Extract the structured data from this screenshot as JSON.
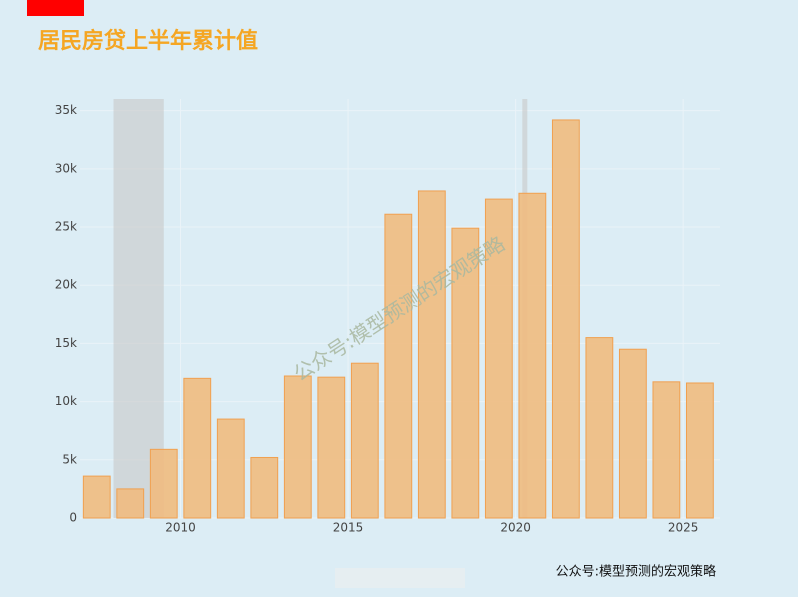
{
  "chart_data": {
    "type": "bar",
    "title": "居民房贷上半年累计值",
    "watermark": "公众号:模型预测的宏观策略",
    "footer": "公众号:模型预测的宏观策略",
    "x": [
      2007.5,
      2008.5,
      2009.5,
      2010.5,
      2011.5,
      2012.5,
      2013.5,
      2014.5,
      2015.5,
      2016.5,
      2017.5,
      2018.5,
      2019.5,
      2020.5,
      2021.5,
      2022.5,
      2023.5,
      2024.5,
      2025.5
    ],
    "values": [
      3600,
      2500,
      5900,
      12000,
      8500,
      5200,
      12200,
      12100,
      13300,
      26100,
      28100,
      24900,
      27400,
      27900,
      34200,
      15500,
      14500,
      11700,
      11600
    ],
    "color": "#f0bb80",
    "edge_color": "#f0a050",
    "shaded_ranges": [
      [
        2008.0,
        2009.5
      ],
      [
        2020.2,
        2020.35
      ]
    ],
    "xlim": [
      2007,
      2026.1
    ],
    "xticks": [
      2010,
      2015,
      2020,
      2025
    ],
    "ylim": [
      0,
      36000
    ],
    "yticks": [
      0,
      {
        "value": 5000,
        "label": "5k"
      },
      {
        "value": 10000,
        "label": "10k"
      },
      {
        "value": 15000,
        "label": "15k"
      },
      {
        "value": 20000,
        "label": "20k"
      },
      {
        "value": 25000,
        "label": "25k"
      },
      {
        "value": 30000,
        "label": "30k"
      },
      {
        "value": 35000,
        "label": "35k"
      }
    ],
    "grid": true
  }
}
